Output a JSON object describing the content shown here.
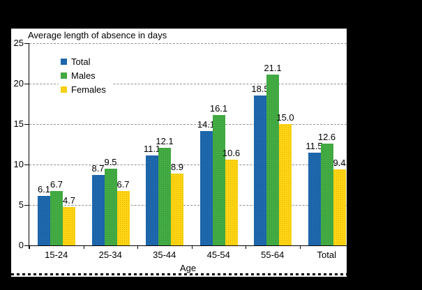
{
  "window": {
    "background_color": "#000000",
    "panel_color": "#ffffff"
  },
  "chart_data": {
    "type": "bar",
    "title": "Average length of absence in days",
    "xlabel": "Age",
    "ylabel": "",
    "ylim": [
      0,
      25
    ],
    "yticks": [
      0,
      5,
      10,
      15,
      20,
      25
    ],
    "grid": true,
    "bar_labels": true,
    "label_decimals": 1,
    "legend_position": "upper-left-inside",
    "categories": [
      "15-24",
      "25-34",
      "35-44",
      "45-54",
      "55-64",
      "Total"
    ],
    "series": [
      {
        "name": "Total",
        "color": "#1e68ae",
        "values": [
          6.1,
          8.7,
          11.1,
          14.1,
          18.5,
          11.5
        ]
      },
      {
        "name": "Males",
        "color": "#43ac43",
        "values": [
          6.7,
          9.5,
          12.1,
          16.1,
          21.1,
          12.6
        ]
      },
      {
        "name": "Females",
        "color": "#ffd412",
        "values": [
          4.7,
          6.7,
          8.9,
          10.6,
          15.0,
          9.4
        ]
      }
    ]
  }
}
